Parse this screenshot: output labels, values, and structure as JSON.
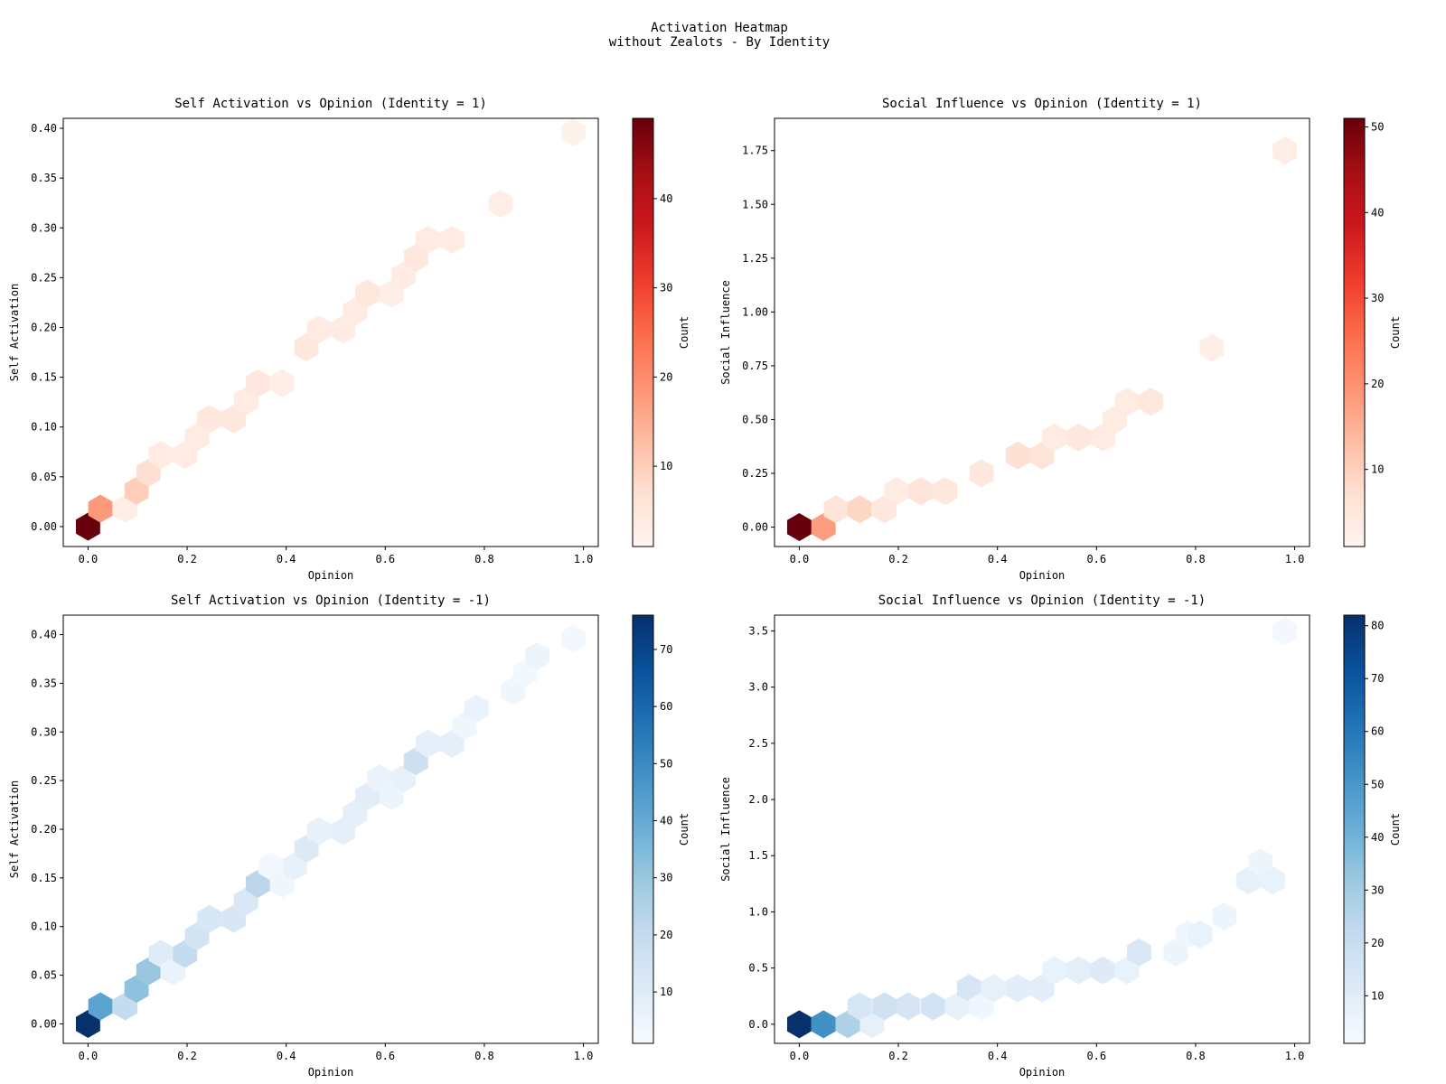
{
  "figure": {
    "title_line1": "Activation Heatmap",
    "title_line2": "without Zealots - By Identity"
  },
  "colors": {
    "Reds": [
      "#fff5f0",
      "#fee0d2",
      "#fcbba1",
      "#fc9272",
      "#fb6a4a",
      "#ef3b2c",
      "#cb181d",
      "#a50f15",
      "#67000d"
    ],
    "Blues": [
      "#f7fbff",
      "#deebf7",
      "#c6dbef",
      "#9ecae1",
      "#6baed6",
      "#4292c6",
      "#2171b5",
      "#08519c",
      "#08306b"
    ]
  },
  "chart_data": [
    {
      "type": "heatmap",
      "subtype": "hexbin",
      "title": "Self Activation vs Opinion (Identity = 1)",
      "xlabel": "Opinion",
      "ylabel": "Self Activation",
      "colorbar_label": "Count",
      "cmap": "Reds",
      "xlim": [
        -0.05,
        1.03
      ],
      "ylim": [
        -0.02,
        0.41
      ],
      "xticks": [
        "0.0",
        "0.2",
        "0.4",
        "0.6",
        "0.8",
        "1.0"
      ],
      "yticks": [
        "0.00",
        "0.05",
        "0.10",
        "0.15",
        "0.20",
        "0.25",
        "0.30",
        "0.35",
        "0.40"
      ],
      "clim": [
        1,
        49
      ],
      "cticks": [
        "10",
        "20",
        "30",
        "40"
      ],
      "bins": [
        [
          0.0,
          0.0,
          49
        ],
        [
          0.025,
          0.018,
          18
        ],
        [
          0.075,
          0.018,
          3
        ],
        [
          0.098,
          0.036,
          10
        ],
        [
          0.122,
          0.054,
          7
        ],
        [
          0.147,
          0.072,
          4
        ],
        [
          0.196,
          0.072,
          4
        ],
        [
          0.22,
          0.09,
          4
        ],
        [
          0.245,
          0.108,
          5
        ],
        [
          0.294,
          0.108,
          5
        ],
        [
          0.319,
          0.126,
          4
        ],
        [
          0.343,
          0.144,
          5
        ],
        [
          0.392,
          0.144,
          3
        ],
        [
          0.441,
          0.18,
          5
        ],
        [
          0.466,
          0.198,
          4
        ],
        [
          0.515,
          0.198,
          4
        ],
        [
          0.539,
          0.216,
          4
        ],
        [
          0.564,
          0.234,
          5
        ],
        [
          0.613,
          0.234,
          3
        ],
        [
          0.637,
          0.252,
          4
        ],
        [
          0.662,
          0.27,
          5
        ],
        [
          0.686,
          0.288,
          4
        ],
        [
          0.735,
          0.288,
          4
        ],
        [
          0.833,
          0.324,
          3
        ],
        [
          0.98,
          0.396,
          2
        ]
      ]
    },
    {
      "type": "heatmap",
      "subtype": "hexbin",
      "title": "Social Influence vs Opinion (Identity = 1)",
      "xlabel": "Opinion",
      "ylabel": "Social Influence",
      "colorbar_label": "Count",
      "cmap": "Reds",
      "xlim": [
        -0.05,
        1.03
      ],
      "ylim": [
        -0.09,
        1.9
      ],
      "xticks": [
        "0.0",
        "0.2",
        "0.4",
        "0.6",
        "0.8",
        "1.0"
      ],
      "yticks": [
        "0.00",
        "0.25",
        "0.50",
        "0.75",
        "1.00",
        "1.25",
        "1.50",
        "1.75"
      ],
      "clim": [
        1,
        51
      ],
      "cticks": [
        "10",
        "20",
        "30",
        "40",
        "50"
      ],
      "bins": [
        [
          0.0,
          0.0,
          51
        ],
        [
          0.049,
          0.0,
          18
        ],
        [
          0.074,
          0.083,
          6
        ],
        [
          0.122,
          0.083,
          9
        ],
        [
          0.172,
          0.083,
          5
        ],
        [
          0.196,
          0.167,
          4
        ],
        [
          0.245,
          0.167,
          6
        ],
        [
          0.294,
          0.167,
          5
        ],
        [
          0.368,
          0.25,
          5
        ],
        [
          0.441,
          0.333,
          7
        ],
        [
          0.49,
          0.333,
          6
        ],
        [
          0.515,
          0.417,
          4
        ],
        [
          0.564,
          0.417,
          5
        ],
        [
          0.613,
          0.417,
          4
        ],
        [
          0.637,
          0.5,
          4
        ],
        [
          0.662,
          0.583,
          4
        ],
        [
          0.71,
          0.583,
          5
        ],
        [
          0.833,
          0.833,
          3
        ],
        [
          0.98,
          1.75,
          3
        ]
      ]
    },
    {
      "type": "heatmap",
      "subtype": "hexbin",
      "title": "Self Activation vs Opinion (Identity = -1)",
      "xlabel": "Opinion",
      "ylabel": "Self Activation",
      "colorbar_label": "Count",
      "cmap": "Blues",
      "xlim": [
        -0.05,
        1.03
      ],
      "ylim": [
        -0.02,
        0.42
      ],
      "xticks": [
        "0.0",
        "0.2",
        "0.4",
        "0.6",
        "0.8",
        "1.0"
      ],
      "yticks": [
        "0.00",
        "0.05",
        "0.10",
        "0.15",
        "0.20",
        "0.25",
        "0.30",
        "0.35",
        "0.40"
      ],
      "clim": [
        1,
        76
      ],
      "cticks": [
        "10",
        "20",
        "30",
        "40",
        "50",
        "60",
        "70"
      ],
      "bins": [
        [
          0.0,
          0.0,
          76
        ],
        [
          0.025,
          0.018,
          42
        ],
        [
          0.075,
          0.018,
          20
        ],
        [
          0.098,
          0.036,
          32
        ],
        [
          0.122,
          0.054,
          30
        ],
        [
          0.147,
          0.072,
          10
        ],
        [
          0.172,
          0.054,
          6
        ],
        [
          0.196,
          0.072,
          20
        ],
        [
          0.22,
          0.09,
          15
        ],
        [
          0.245,
          0.108,
          13
        ],
        [
          0.294,
          0.108,
          13
        ],
        [
          0.319,
          0.126,
          12
        ],
        [
          0.343,
          0.144,
          22
        ],
        [
          0.368,
          0.162,
          3
        ],
        [
          0.392,
          0.144,
          4
        ],
        [
          0.417,
          0.162,
          7
        ],
        [
          0.441,
          0.18,
          11
        ],
        [
          0.466,
          0.198,
          7
        ],
        [
          0.515,
          0.198,
          8
        ],
        [
          0.539,
          0.216,
          8
        ],
        [
          0.564,
          0.234,
          9
        ],
        [
          0.588,
          0.252,
          6
        ],
        [
          0.613,
          0.234,
          5
        ],
        [
          0.637,
          0.252,
          7
        ],
        [
          0.662,
          0.27,
          17
        ],
        [
          0.686,
          0.288,
          8
        ],
        [
          0.735,
          0.288,
          8
        ],
        [
          0.76,
          0.306,
          4
        ],
        [
          0.784,
          0.324,
          6
        ],
        [
          0.858,
          0.342,
          4
        ],
        [
          0.882,
          0.36,
          3
        ],
        [
          0.907,
          0.378,
          5
        ],
        [
          0.98,
          0.396,
          3
        ]
      ]
    },
    {
      "type": "heatmap",
      "subtype": "hexbin",
      "title": "Social Influence vs Opinion (Identity = -1)",
      "xlabel": "Opinion",
      "ylabel": "Social Influence",
      "colorbar_label": "Count",
      "cmap": "Blues",
      "xlim": [
        -0.05,
        1.03
      ],
      "ylim": [
        -0.17,
        3.64
      ],
      "xticks": [
        "0.0",
        "0.2",
        "0.4",
        "0.6",
        "0.8",
        "1.0"
      ],
      "yticks": [
        "0.0",
        "0.5",
        "1.0",
        "1.5",
        "2.0",
        "2.5",
        "3.0",
        "3.5"
      ],
      "clim": [
        1,
        82
      ],
      "cticks": [
        "10",
        "20",
        "30",
        "40",
        "50",
        "60",
        "70",
        "80"
      ],
      "bins": [
        [
          0.0,
          0.0,
          82
        ],
        [
          0.049,
          0.0,
          52
        ],
        [
          0.098,
          0.0,
          27
        ],
        [
          0.147,
          0.0,
          8
        ],
        [
          0.122,
          0.16,
          14
        ],
        [
          0.172,
          0.16,
          17
        ],
        [
          0.22,
          0.16,
          15
        ],
        [
          0.27,
          0.16,
          16
        ],
        [
          0.319,
          0.16,
          8
        ],
        [
          0.343,
          0.32,
          14
        ],
        [
          0.368,
          0.16,
          4
        ],
        [
          0.392,
          0.32,
          8
        ],
        [
          0.441,
          0.32,
          10
        ],
        [
          0.49,
          0.32,
          10
        ],
        [
          0.515,
          0.48,
          7
        ],
        [
          0.564,
          0.48,
          9
        ],
        [
          0.613,
          0.48,
          11
        ],
        [
          0.662,
          0.48,
          7
        ],
        [
          0.686,
          0.64,
          13
        ],
        [
          0.76,
          0.64,
          5
        ],
        [
          0.784,
          0.8,
          4
        ],
        [
          0.809,
          0.8,
          7
        ],
        [
          0.858,
          0.96,
          5
        ],
        [
          0.907,
          1.28,
          8
        ],
        [
          0.931,
          1.44,
          5
        ],
        [
          0.956,
          1.28,
          7
        ],
        [
          0.98,
          3.5,
          3
        ]
      ]
    }
  ]
}
